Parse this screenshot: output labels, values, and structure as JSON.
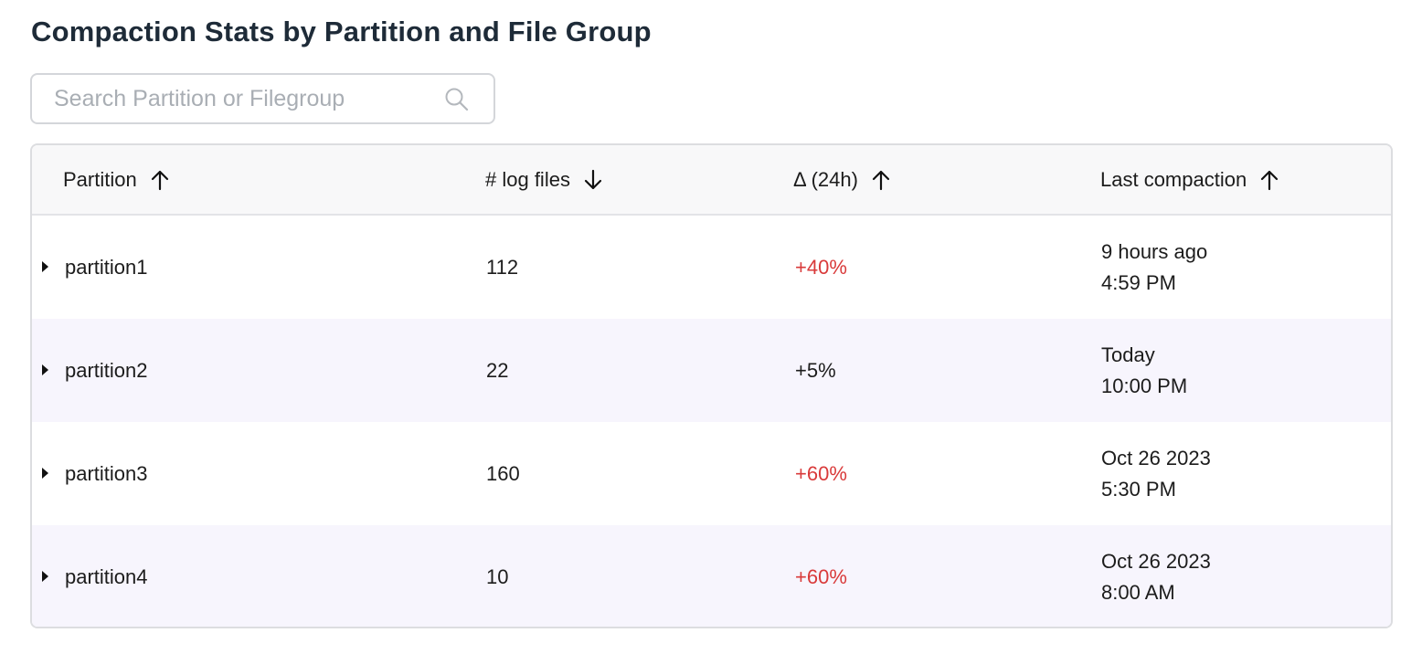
{
  "title": "Compaction Stats by Partition and File Group",
  "search": {
    "placeholder": "Search Partition or Filegroup",
    "value": "",
    "icon": "search-icon"
  },
  "table": {
    "columns": [
      {
        "label": "Partition",
        "sort": "up"
      },
      {
        "label": "# log files",
        "sort": "down"
      },
      {
        "label": "Δ (24h)",
        "sort": "up"
      },
      {
        "label": "Last compaction",
        "sort": "up"
      }
    ],
    "rows": [
      {
        "partition": "partition1",
        "log_files": "112",
        "delta": "+40%",
        "delta_color": "#d93a3a",
        "last_line1": "9 hours ago",
        "last_line2": "4:59 PM"
      },
      {
        "partition": "partition2",
        "log_files": "22",
        "delta": "+5%",
        "delta_color": "#1c1c1c",
        "last_line1": "Today",
        "last_line2": "10:00 PM"
      },
      {
        "partition": "partition3",
        "log_files": "160",
        "delta": "+60%",
        "delta_color": "#d93a3a",
        "last_line1": "Oct 26 2023",
        "last_line2": "5:30 PM"
      },
      {
        "partition": "partition4",
        "log_files": "10",
        "delta": "+60%",
        "delta_color": "#d93a3a",
        "last_line1": "Oct 26 2023",
        "last_line2": "8:00 AM"
      }
    ]
  },
  "colors": {
    "alt_row": "#f7f5fd",
    "header_bg": "#f8f8f9",
    "negative_delta": "#d93a3a"
  }
}
